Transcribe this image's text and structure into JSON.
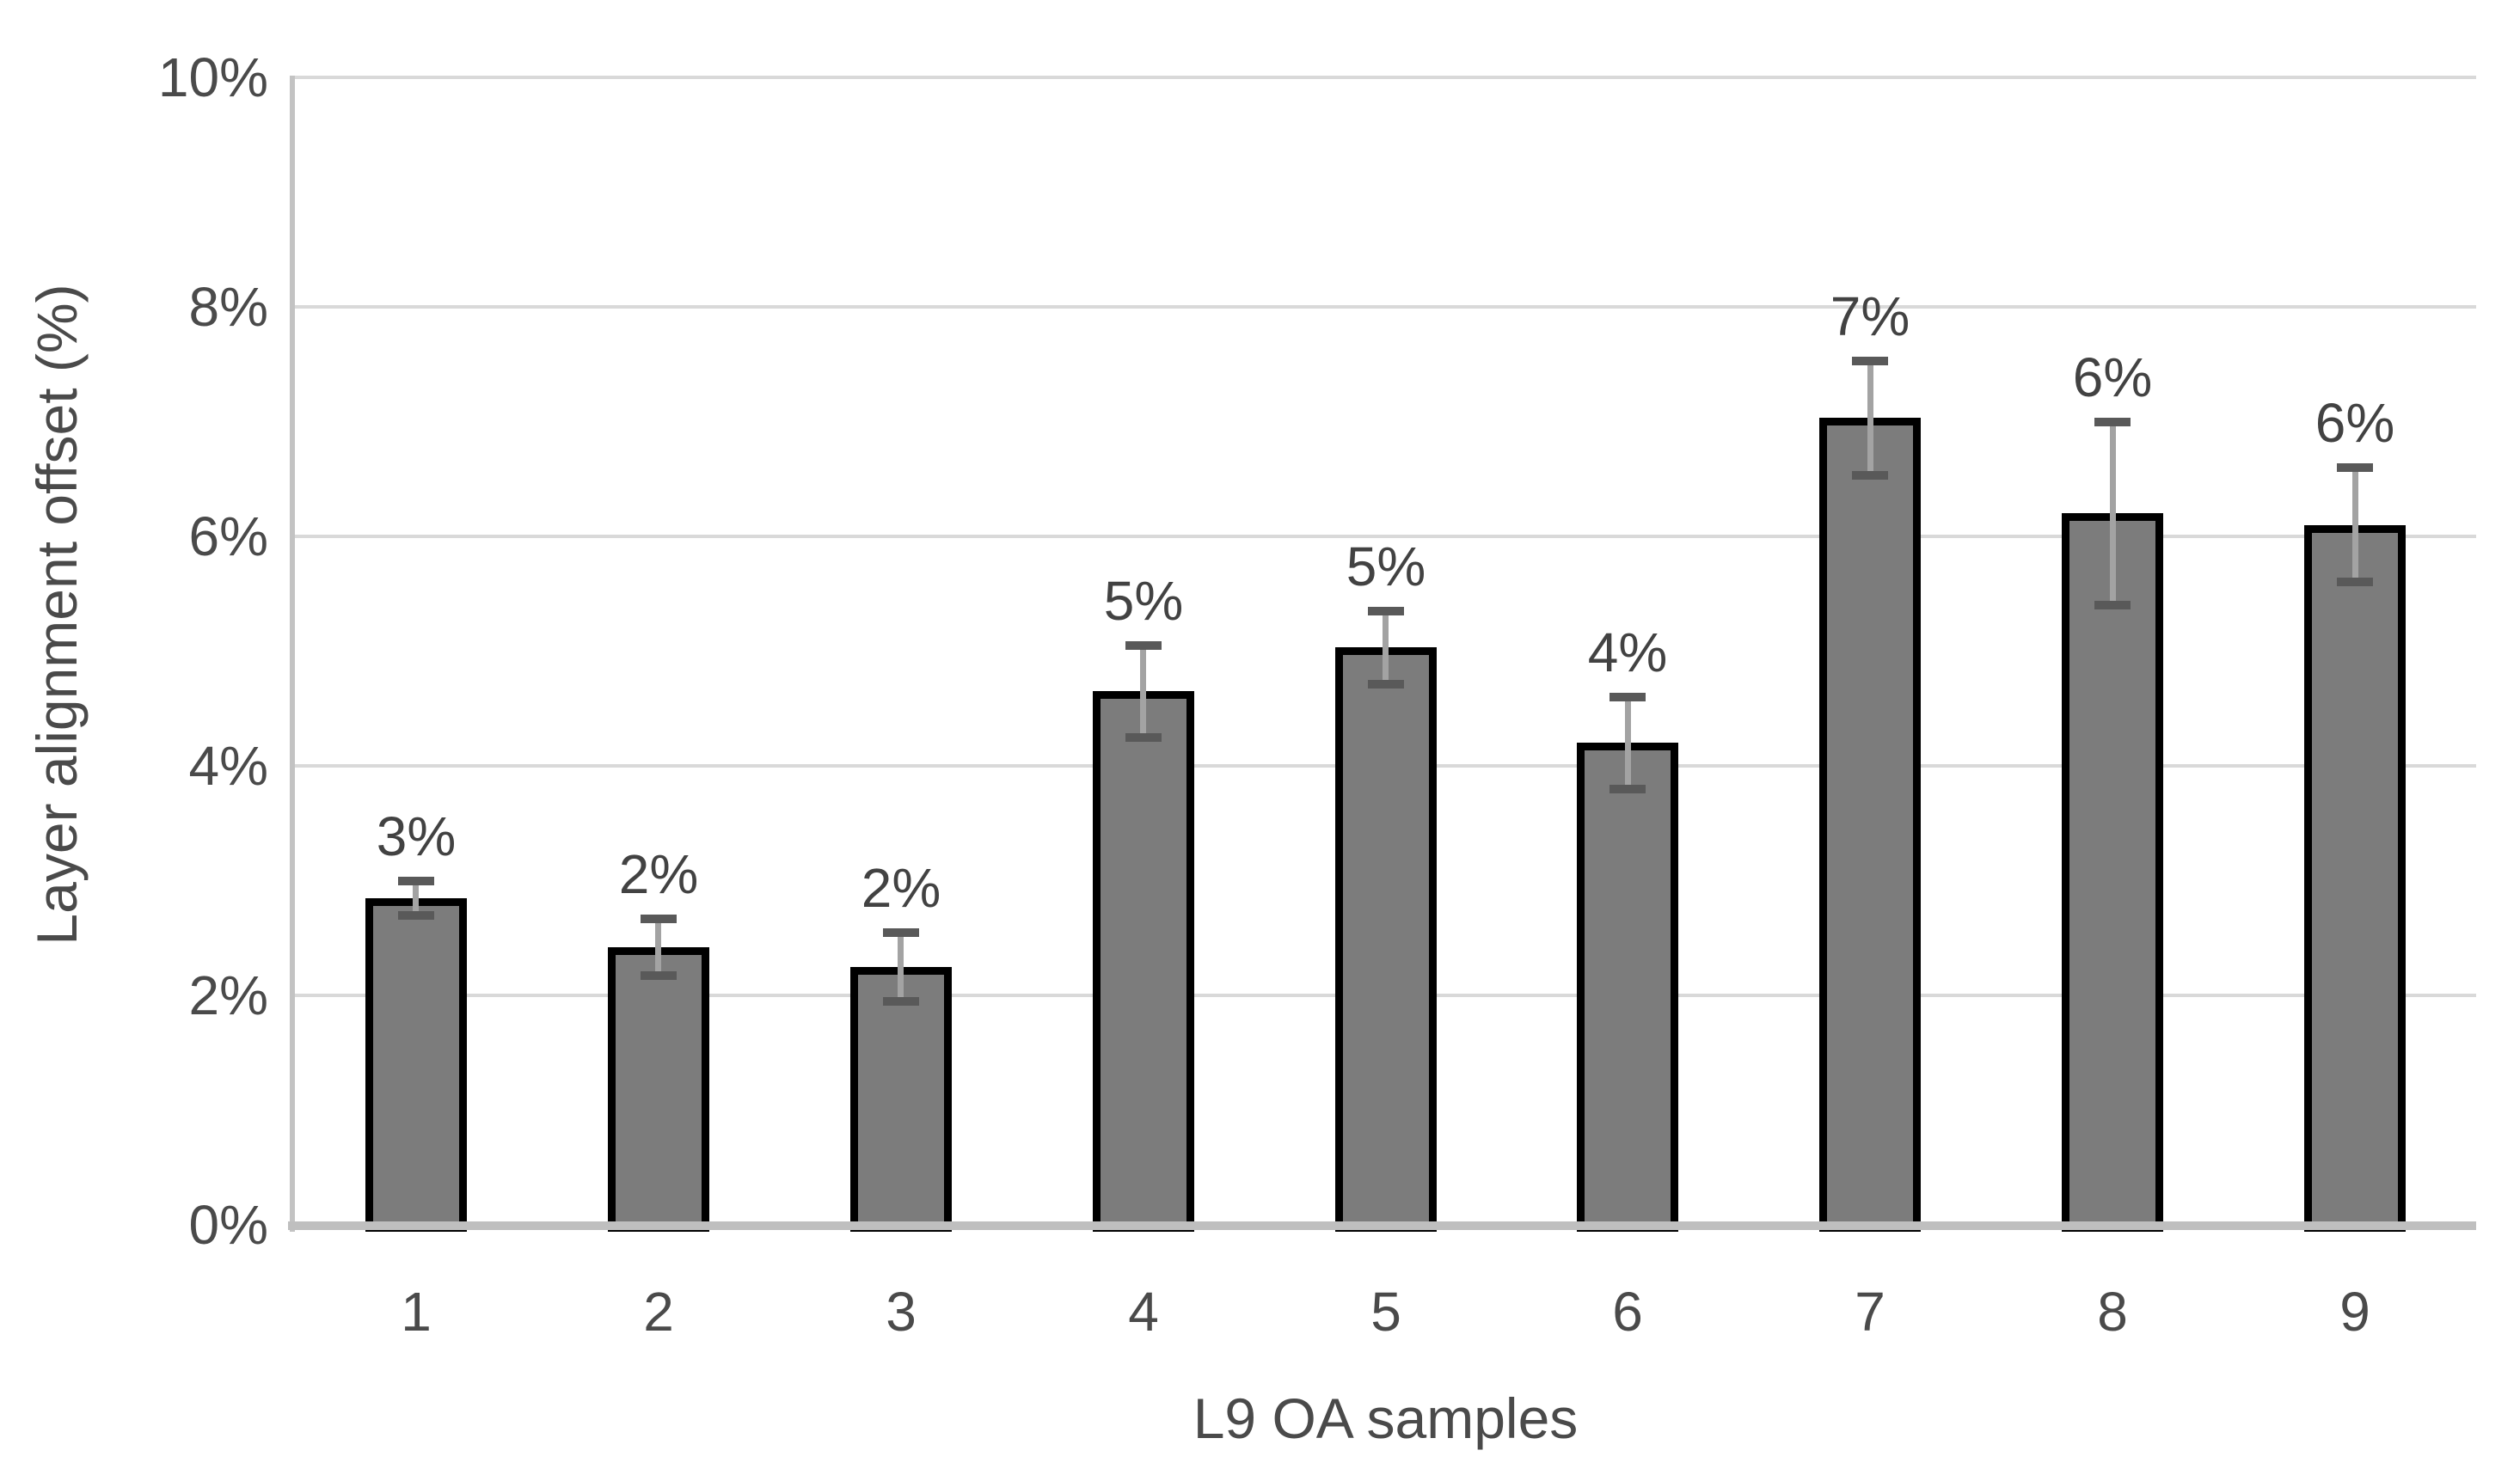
{
  "chart_data": {
    "type": "bar",
    "title": "",
    "xlabel": "L9 OA samples",
    "ylabel": "Layer alignment offset (%)",
    "categories": [
      "1",
      "2",
      "3",
      "4",
      "5",
      "6",
      "7",
      "8",
      "9"
    ],
    "series": [
      {
        "name": "Layer alignment offset",
        "values": [
          2.85,
          2.42,
          2.25,
          4.65,
          5.03,
          4.2,
          7.03,
          6.2,
          6.1
        ],
        "errors": [
          0.15,
          0.25,
          0.3,
          0.4,
          0.32,
          0.4,
          0.5,
          0.8,
          0.5
        ],
        "data_labels": [
          "3%",
          "2%",
          "2%",
          "5%",
          "5%",
          "4%",
          "7%",
          "6%",
          "6%"
        ]
      }
    ],
    "y_ticks": [
      {
        "label": "0%",
        "value": 0
      },
      {
        "label": "2%",
        "value": 2
      },
      {
        "label": "4%",
        "value": 4
      },
      {
        "label": "6%",
        "value": 6
      },
      {
        "label": "8%",
        "value": 8
      },
      {
        "label": "10%",
        "value": 10
      }
    ],
    "ylim": [
      0,
      10
    ],
    "grid": true,
    "legend": false,
    "colors": {
      "bar_fill": "#7c7c7c",
      "bar_border": "#000000",
      "error_line": "#a3a3a3",
      "error_cap": "#595959",
      "gridline": "#d9d9d9",
      "axis_line": "#bfbfbf",
      "plot_border": "#c3c3c3",
      "text": "#4a4a4a",
      "background": "#ffffff"
    }
  }
}
